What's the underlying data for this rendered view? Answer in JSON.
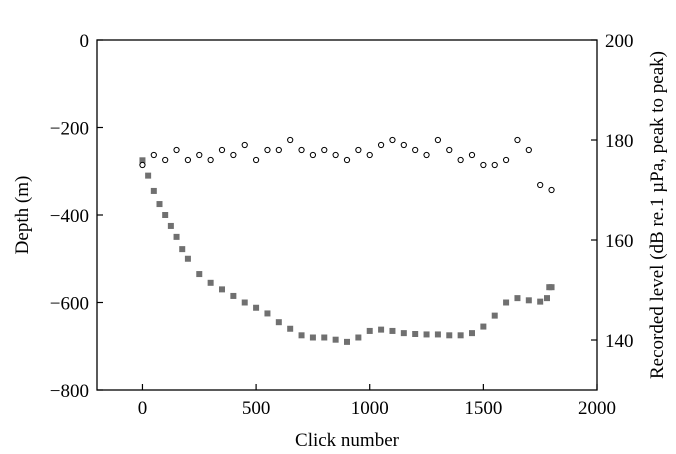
{
  "chart_data": {
    "type": "scatter",
    "xlabel": "Click number",
    "ylabel_left": "Depth (m)",
    "ylabel_right": "Recorded level (dB re.1 µPa, peak to peak)",
    "xlim": [
      -200,
      2000
    ],
    "ylim_left": [
      -800,
      0
    ],
    "ylim_right": [
      130,
      200
    ],
    "x_ticks": [
      0,
      500,
      1000,
      1500,
      2000
    ],
    "x_tick_labels": [
      "0",
      "500",
      "1000",
      "1500",
      "2000"
    ],
    "y_left_ticks": [
      0,
      -200,
      -400,
      -600,
      -800
    ],
    "y_left_tick_labels": [
      "0",
      "−200",
      "−400",
      "−600",
      "−800"
    ],
    "y_right_ticks": [
      200,
      180,
      160,
      140
    ],
    "y_right_tick_labels": [
      "200",
      "180",
      "160",
      "140"
    ],
    "grid": false,
    "series": [
      {
        "axis": "left",
        "marker": "filled-square",
        "color": "#707070",
        "x": [
          0,
          25,
          50,
          75,
          100,
          125,
          150,
          175,
          200,
          250,
          300,
          350,
          400,
          450,
          500,
          550,
          600,
          650,
          700,
          750,
          800,
          850,
          900,
          950,
          1000,
          1050,
          1100,
          1150,
          1200,
          1250,
          1300,
          1350,
          1400,
          1450,
          1500,
          1550,
          1600,
          1650,
          1700,
          1750,
          1780,
          1790,
          1800
        ],
        "y": [
          -275,
          -310,
          -345,
          -375,
          -400,
          -425,
          -450,
          -478,
          -500,
          -535,
          -555,
          -570,
          -585,
          -600,
          -612,
          -625,
          -645,
          -660,
          -675,
          -680,
          -680,
          -685,
          -690,
          -680,
          -665,
          -662,
          -665,
          -670,
          -672,
          -673,
          -673,
          -675,
          -675,
          -670,
          -655,
          -630,
          -600,
          -590,
          -595,
          -598,
          -590,
          -565,
          -565
        ]
      },
      {
        "axis": "right",
        "marker": "open-circle",
        "color": "#000000",
        "x": [
          0,
          50,
          100,
          150,
          200,
          250,
          300,
          350,
          400,
          450,
          500,
          550,
          600,
          650,
          700,
          750,
          800,
          850,
          900,
          950,
          1000,
          1050,
          1100,
          1150,
          1200,
          1250,
          1300,
          1350,
          1400,
          1450,
          1500,
          1550,
          1600,
          1650,
          1700,
          1750,
          1800
        ],
        "y": [
          175,
          177,
          176,
          178,
          176,
          177,
          176,
          178,
          177,
          179,
          176,
          178,
          178,
          180,
          178,
          177,
          178,
          177,
          176,
          178,
          177,
          179,
          180,
          179,
          178,
          177,
          180,
          178,
          176,
          177,
          175,
          175,
          176,
          180,
          178,
          171,
          170
        ]
      }
    ]
  }
}
